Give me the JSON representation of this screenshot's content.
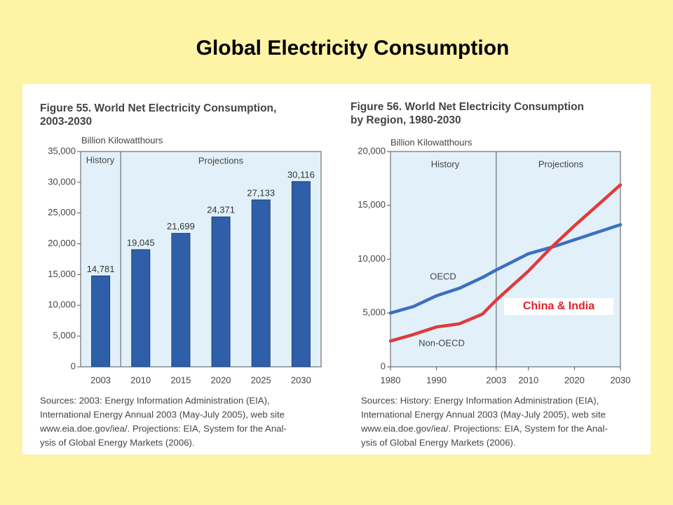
{
  "title": "Global Electricity Consumption",
  "chart_data": [
    {
      "type": "bar",
      "title": [
        "Figure 55.  World Net Electricity Consumption,",
        "2003-2030"
      ],
      "ylabel": "Billion Kilowatthours",
      "periods": [
        "History",
        "Projections"
      ],
      "categories": [
        "2003",
        "2010",
        "2015",
        "2020",
        "2025",
        "2030"
      ],
      "values": [
        14781,
        19045,
        21699,
        24371,
        27133,
        30116
      ],
      "value_labels": [
        "14,781",
        "19,045",
        "21,699",
        "24,371",
        "27,133",
        "30,116"
      ],
      "color": "#2f5fa9",
      "ylim": [
        0,
        35000
      ],
      "yticks": [
        0,
        {
          "value": 5000,
          "label": "5,000"
        },
        {
          "value": 10000,
          "label": "10,000"
        },
        {
          "value": 15000,
          "label": "15,000"
        },
        {
          "value": 20000,
          "label": "20,000"
        },
        {
          "value": 25000,
          "label": "25,000"
        },
        {
          "value": 30000,
          "label": "30,000"
        },
        {
          "value": 35000,
          "label": "35,000"
        }
      ],
      "sources": [
        "Sources: 2003: Energy Information Administration (EIA),",
        "International Energy Annual 2003 (May-July 2005), web site",
        "www.eia.doe.gov/iea/. Projections: EIA, System for the Anal-",
        "ysis of Global Energy Markets (2006)."
      ]
    },
    {
      "type": "line",
      "title": [
        "Figure 56.  World Net Electricity Consumption",
        "by Region, 1980-2030"
      ],
      "ylabel": "Billion Kilowatthours",
      "periods": [
        "History",
        "Projections"
      ],
      "divider_x": 2003,
      "x": [
        1980,
        1985,
        1990,
        1995,
        2000,
        2003,
        2010,
        2015,
        2020,
        2025,
        2030
      ],
      "series": [
        {
          "name": "OECD",
          "color": "#3c6fc2",
          "values": [
            5000,
            5600,
            6600,
            7300,
            8300,
            9000,
            10500,
            11100,
            11800,
            12500,
            13200
          ]
        },
        {
          "name": "Non-OECD",
          "color": "#e03a3c",
          "values": [
            2400,
            3000,
            3700,
            4000,
            4900,
            6200,
            8900,
            11100,
            13100,
            15000,
            16900
          ]
        }
      ],
      "xlim": [
        1980,
        2030
      ],
      "xticks": [
        1980,
        1990,
        2003,
        2010,
        2020,
        2030
      ],
      "ylim": [
        0,
        20000
      ],
      "yticks": [
        0,
        {
          "value": 5000,
          "label": "5,000"
        },
        {
          "value": 10000,
          "label": "10,000"
        },
        {
          "value": 15000,
          "label": "15,000"
        },
        {
          "value": 20000,
          "label": "20,000"
        }
      ],
      "annotations": [
        {
          "text": "China & India",
          "color": "#e0202a"
        }
      ],
      "sources": [
        "Sources: History: Energy Information Administration (EIA),",
        "International Energy Annual 2003 (May-July 2005), web site",
        "www.eia.doe.gov/iea/. Projections: EIA, System for the Anal-",
        "ysis of Global Energy Markets (2006)."
      ]
    }
  ]
}
